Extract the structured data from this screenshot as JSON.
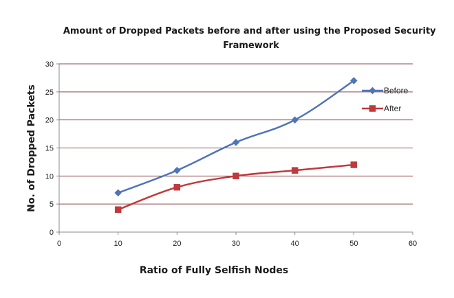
{
  "chart_data": {
    "type": "line",
    "title": "Amount of Dropped Packets before and after using the Proposed Security Framework",
    "title_lines": [
      "Amount of Dropped Packets before and after using the Proposed Security",
      "Framework"
    ],
    "xlabel": "Ratio of Fully Selfish Nodes",
    "ylabel": "No. of Dropped Packets",
    "xlim": [
      0,
      60
    ],
    "ylim": [
      0,
      30
    ],
    "x_ticks": [
      0,
      10,
      20,
      30,
      40,
      50,
      60
    ],
    "y_ticks": [
      0,
      5,
      10,
      15,
      20,
      25,
      30
    ],
    "grid": "horizontal",
    "legend_position": "right",
    "series": [
      {
        "name": "Before",
        "color": "#4f74b8",
        "marker": "diamond",
        "x": [
          10,
          20,
          30,
          40,
          50
        ],
        "y": [
          7,
          11,
          16,
          20,
          27
        ]
      },
      {
        "name": "After",
        "color": "#c0393b",
        "marker": "square",
        "x": [
          10,
          20,
          30,
          40,
          50
        ],
        "y": [
          4,
          8,
          10,
          11,
          12
        ]
      }
    ]
  }
}
